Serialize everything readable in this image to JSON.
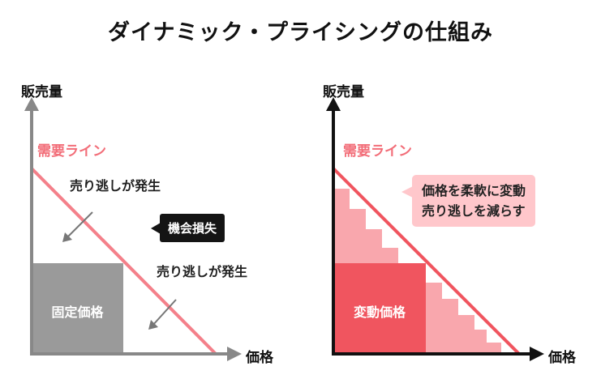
{
  "title": "ダイナミック・プライシングの仕組み",
  "left_chart": {
    "y_axis_label": "販売量",
    "x_axis_label": "価格",
    "demand_line_label": "需要ライン",
    "note_top": "売り逃しが発生",
    "note_bottom": "売り逃しが発生",
    "callout": "機会損失",
    "block_label": "固定価格"
  },
  "right_chart": {
    "y_axis_label": "販売量",
    "x_axis_label": "価格",
    "demand_line_label": "需要ライン",
    "callout_line1": "価格を柔軟に変動",
    "callout_line2": "売り逃しを減らす",
    "block_label": "変動価格"
  },
  "colors": {
    "demand_line": "#f4808a",
    "fixed_price_block": "#9a9a9a",
    "variable_price_block": "#f0555f",
    "step_fill": "#f9a7ad",
    "left_axis": "#888888",
    "right_axis": "#111111"
  }
}
